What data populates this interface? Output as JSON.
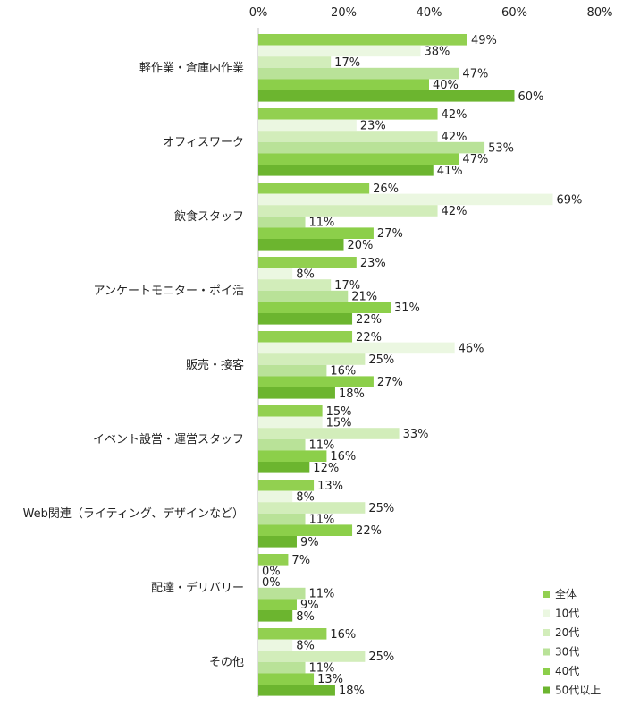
{
  "chart_data": {
    "type": "bar",
    "orientation": "horizontal",
    "categories": [
      "軽作業・倉庫内作業",
      "オフィスワーク",
      "飲食スタッフ",
      "アンケートモニター・ポイ活",
      "販売・接客",
      "イベント設営・運営スタッフ",
      "Web関連（ライティング、デザインなど）",
      "配達・デリバリー",
      "その他"
    ],
    "series": [
      {
        "name": "全体",
        "color": "#92d050",
        "values": [
          49,
          42,
          26,
          23,
          22,
          15,
          13,
          7,
          16
        ]
      },
      {
        "name": "10代",
        "color": "#ebf7e1",
        "values": [
          38,
          23,
          69,
          8,
          46,
          15,
          8,
          0,
          8
        ]
      },
      {
        "name": "20代",
        "color": "#d2edba",
        "values": [
          17,
          42,
          42,
          17,
          25,
          33,
          25,
          0,
          25
        ]
      },
      {
        "name": "30代",
        "color": "#b9e298",
        "values": [
          47,
          53,
          11,
          21,
          16,
          11,
          11,
          11,
          11
        ]
      },
      {
        "name": "40代",
        "color": "#8ccf4a",
        "values": [
          40,
          47,
          27,
          31,
          27,
          16,
          22,
          9,
          13
        ]
      },
      {
        "name": "50代以上",
        "color": "#6cb52f",
        "values": [
          60,
          41,
          20,
          22,
          18,
          12,
          9,
          8,
          18
        ]
      }
    ],
    "value_suffix": "%",
    "xlim": [
      0,
      80
    ],
    "x_ticks": [
      "0%",
      "20%",
      "40%",
      "60%",
      "80%"
    ],
    "axis_position": "top",
    "grid": false,
    "legend_position": "bottom-right",
    "title": "",
    "xlabel": "",
    "ylabel": ""
  }
}
